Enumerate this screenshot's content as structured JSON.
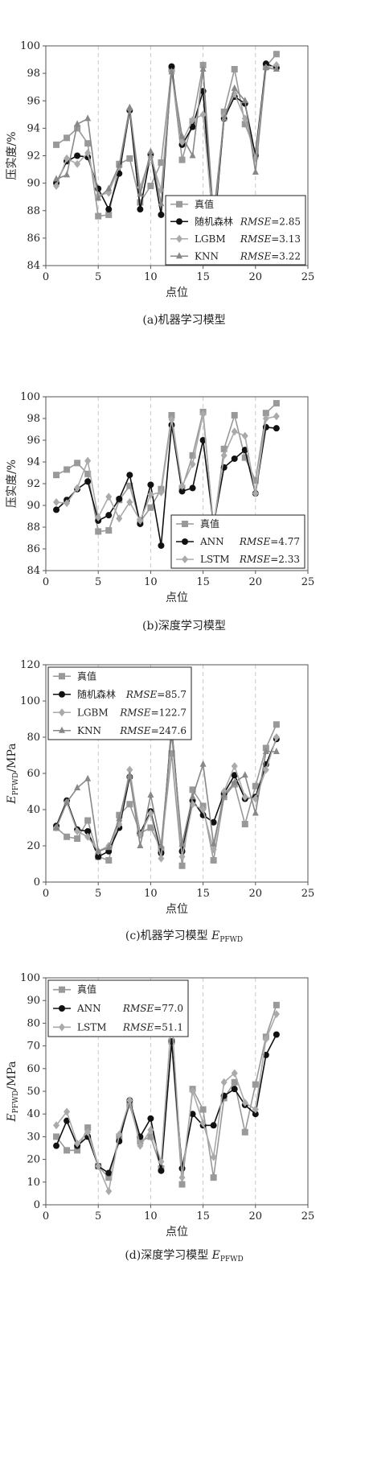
{
  "chart_data": [
    {
      "type": "line",
      "caption": "(a)机器学习模型",
      "ylabel": "压实度/%",
      "xlabel": "点位",
      "xlim": [
        0,
        25
      ],
      "ylim": [
        84,
        100
      ],
      "xticks": [
        0,
        5,
        10,
        15,
        20,
        25
      ],
      "yticks": [
        84,
        86,
        88,
        90,
        92,
        94,
        96,
        98,
        100
      ],
      "grid": "vertical dashed",
      "legend_position": "bottom-right",
      "x": [
        1,
        2,
        3,
        4,
        5,
        6,
        7,
        8,
        9,
        10,
        11,
        12,
        13,
        14,
        15,
        16,
        17,
        18,
        19,
        20,
        21,
        22
      ],
      "series": [
        {
          "name": "真值",
          "rmse": "",
          "color": "#999999",
          "marker": "square",
          "values": [
            92.8,
            93.3,
            94.0,
            92.9,
            87.6,
            87.7,
            91.4,
            91.8,
            88.6,
            89.8,
            91.5,
            98.3,
            91.7,
            94.5,
            98.6,
            85.8,
            95.2,
            98.3,
            94.3,
            92.3,
            98.5,
            99.4
          ]
        },
        {
          "name": "随机森林",
          "rmse": "RMSE=2.85",
          "color": "#111111",
          "marker": "circle",
          "values": [
            90.0,
            91.6,
            92.0,
            91.9,
            89.6,
            88.1,
            90.7,
            95.3,
            88.1,
            92.1,
            87.7,
            98.5,
            92.8,
            94.1,
            96.7,
            86.2,
            94.7,
            96.3,
            95.8,
            92.0,
            98.7,
            98.4
          ]
        },
        {
          "name": "LGBM",
          "rmse": "RMSE=3.13",
          "color": "#aaaaaa",
          "marker": "diamond",
          "values": [
            89.8,
            91.8,
            91.4,
            92.2,
            89.1,
            89.3,
            91.2,
            95.4,
            89.7,
            91.9,
            89.5,
            98.1,
            93.0,
            94.6,
            95.0,
            86.8,
            94.9,
            96.5,
            94.7,
            91.8,
            98.4,
            98.6
          ]
        },
        {
          "name": "KNN",
          "rmse": "RMSE=3.22",
          "color": "#888888",
          "marker": "triangle",
          "values": [
            90.3,
            90.6,
            94.3,
            94.7,
            88.9,
            89.6,
            91.3,
            95.5,
            89.2,
            92.3,
            88.5,
            98.1,
            93.4,
            92.0,
            98.3,
            87.6,
            94.7,
            96.9,
            96.0,
            90.8,
            98.4,
            98.3
          ]
        }
      ]
    },
    {
      "type": "line",
      "caption": "(b)深度学习模型",
      "ylabel": "压实度/%",
      "xlabel": "点位",
      "xlim": [
        0,
        25
      ],
      "ylim": [
        84,
        100
      ],
      "xticks": [
        0,
        5,
        10,
        15,
        20,
        25
      ],
      "yticks": [
        84,
        86,
        88,
        90,
        92,
        94,
        96,
        98,
        100
      ],
      "grid": "vertical dashed",
      "legend_position": "bottom-right",
      "x": [
        1,
        2,
        3,
        4,
        5,
        6,
        7,
        8,
        9,
        10,
        11,
        12,
        13,
        14,
        15,
        16,
        17,
        18,
        19,
        20,
        21,
        22
      ],
      "series": [
        {
          "name": "真值",
          "rmse": "",
          "color": "#999999",
          "marker": "square",
          "values": [
            92.8,
            93.3,
            93.9,
            92.9,
            87.6,
            87.7,
            90.5,
            91.8,
            88.5,
            89.8,
            91.5,
            98.3,
            91.6,
            94.6,
            98.6,
            88.0,
            95.2,
            98.3,
            94.4,
            92.3,
            98.5,
            99.4
          ]
        },
        {
          "name": "ANN",
          "rmse": "RMSE=4.77",
          "color": "#111111",
          "marker": "circle",
          "values": [
            89.6,
            90.5,
            91.5,
            92.2,
            88.6,
            89.1,
            90.6,
            92.8,
            88.3,
            91.9,
            86.3,
            97.4,
            91.3,
            91.6,
            96.0,
            88.2,
            93.5,
            94.3,
            95.1,
            91.1,
            97.2,
            97.1
          ]
        },
        {
          "name": "LSTM",
          "rmse": "RMSE=2.33",
          "color": "#aaaaaa",
          "marker": "diamond",
          "values": [
            90.3,
            90.2,
            91.6,
            94.1,
            88.9,
            90.8,
            88.8,
            90.3,
            88.6,
            91.0,
            91.2,
            97.9,
            91.8,
            93.8,
            98.4,
            88.1,
            94.6,
            96.8,
            96.4,
            91.1,
            98.0,
            98.2
          ]
        }
      ]
    },
    {
      "type": "line",
      "caption": "(c)机器学习模型 E",
      "caption_sub": "PFWD",
      "ylabel": "E",
      "ylabel_sub": "PFWD",
      "ylabel_unit": "/MPa",
      "xlabel": "点位",
      "xlim": [
        0,
        25
      ],
      "ylim": [
        0,
        120
      ],
      "xticks": [
        0,
        5,
        10,
        15,
        20,
        25
      ],
      "yticks": [
        0,
        20,
        40,
        60,
        80,
        100,
        120
      ],
      "grid": "vertical dashed",
      "legend_position": "top-left",
      "x": [
        1,
        2,
        3,
        4,
        5,
        6,
        7,
        8,
        9,
        10,
        11,
        12,
        13,
        14,
        15,
        16,
        17,
        18,
        19,
        20,
        21,
        22
      ],
      "series": [
        {
          "name": "真值",
          "rmse": "",
          "color": "#999999",
          "marker": "square",
          "values": [
            30,
            25,
            24,
            34,
            14,
            12,
            37,
            43,
            27,
            30,
            18,
            71,
            9,
            51,
            42,
            12,
            47,
            54,
            32,
            53,
            74,
            87
          ]
        },
        {
          "name": "随机森林",
          "rmse": "RMSE=85.7",
          "color": "#111111",
          "marker": "circle",
          "values": [
            31,
            45,
            29,
            28,
            14,
            17,
            30,
            58,
            27,
            39,
            16,
            86,
            17,
            45,
            37,
            33,
            49,
            59,
            46,
            47,
            65,
            79
          ]
        },
        {
          "name": "LGBM",
          "rmse": "RMSE=122.7",
          "color": "#aaaaaa",
          "marker": "diamond",
          "values": [
            30,
            44,
            28,
            25,
            17,
            20,
            32,
            62,
            26,
            38,
            13,
            85,
            14,
            43,
            40,
            18,
            50,
            64,
            47,
            46,
            62,
            80
          ]
        },
        {
          "name": "KNN",
          "rmse": "RMSE=247.6",
          "color": "#888888",
          "marker": "triangle",
          "values": [
            30,
            44,
            52,
            57,
            17,
            19,
            35,
            59,
            20,
            48,
            20,
            82,
            21,
            47,
            65,
            21,
            48,
            55,
            59,
            38,
            72,
            72
          ]
        }
      ]
    },
    {
      "type": "line",
      "caption": "(d)深度学习模型 E",
      "caption_sub": "PFWD",
      "ylabel": "E",
      "ylabel_sub": "PFWD",
      "ylabel_unit": "/MPa",
      "xlabel": "点位",
      "xlim": [
        0,
        25
      ],
      "ylim": [
        0,
        100
      ],
      "xticks": [
        0,
        5,
        10,
        15,
        20,
        25
      ],
      "yticks": [
        0,
        10,
        20,
        30,
        40,
        50,
        60,
        70,
        80,
        90,
        100
      ],
      "grid": "vertical dashed",
      "legend_position": "top-left",
      "x": [
        1,
        2,
        3,
        4,
        5,
        6,
        7,
        8,
        9,
        10,
        11,
        12,
        13,
        14,
        15,
        16,
        17,
        18,
        19,
        20,
        21,
        22
      ],
      "series": [
        {
          "name": "真值",
          "rmse": "",
          "color": "#999999",
          "marker": "square",
          "values": [
            30,
            24,
            24,
            34,
            17,
            12,
            30,
            44,
            28,
            30,
            16,
            72,
            9,
            51,
            42,
            12,
            47,
            54,
            32,
            53,
            74,
            88
          ]
        },
        {
          "name": "ANN",
          "rmse": "RMSE=77.0",
          "color": "#111111",
          "marker": "circle",
          "values": [
            26,
            37,
            26,
            30,
            17,
            14,
            28,
            46,
            30,
            38,
            15,
            72,
            16,
            40,
            35,
            35,
            48,
            51,
            44,
            40,
            66,
            75
          ]
        },
        {
          "name": "LSTM",
          "rmse": "RMSE=51.1",
          "color": "#aaaaaa",
          "marker": "diamond",
          "values": [
            35,
            41,
            27,
            32,
            17,
            6,
            31,
            46,
            26,
            33,
            19,
            83,
            12,
            50,
            36,
            21,
            54,
            58,
            45,
            42,
            73,
            84
          ]
        }
      ]
    }
  ]
}
